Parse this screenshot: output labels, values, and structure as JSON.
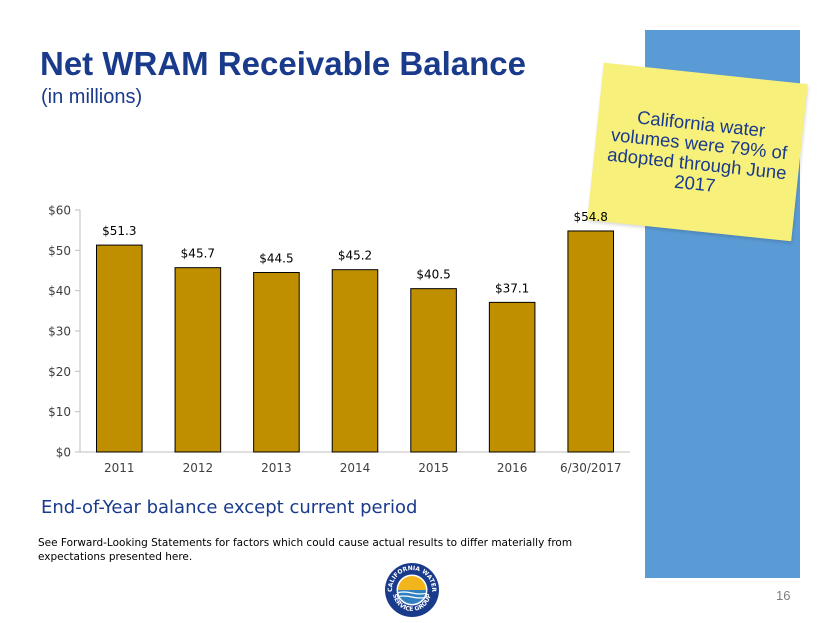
{
  "slide": {
    "title": "Net WRAM Receivable Balance",
    "subtitle": "(in millions)",
    "callout": "California water volumes were 79% of adopted through June 2017",
    "caption": "End-of-Year balance except current period",
    "disclaimer": "See Forward-Looking Statements for factors which could cause actual results to differ materially from expectations presented here.",
    "page_number": "16",
    "logo": {
      "name": "California Water Service Group logo",
      "ring_text_top": "CALIFORNIA WATER",
      "ring_text_bottom": "SERVICE GROUP"
    }
  },
  "colors": {
    "title": "#1a3a8c",
    "bar": "#bf8f00",
    "panel": "#5b9bd5",
    "sticky": "#f7f07a"
  },
  "chart_data": {
    "type": "bar",
    "categories": [
      "2011",
      "2012",
      "2013",
      "2014",
      "2015",
      "2016",
      "6/30/2017"
    ],
    "values": [
      51.3,
      45.7,
      44.5,
      45.2,
      40.5,
      37.1,
      54.8
    ],
    "data_labels": [
      "$51.3",
      "$45.7",
      "$44.5",
      "$45.2",
      "$40.5",
      "$37.1",
      "$54.8"
    ],
    "y_ticks": [
      0,
      10,
      20,
      30,
      40,
      50,
      60
    ],
    "y_tick_labels": [
      "$0",
      "$10",
      "$20",
      "$30",
      "$40",
      "$50",
      "$60"
    ],
    "ylim": [
      0,
      60
    ],
    "xlabel": "",
    "ylabel": "",
    "grid": false,
    "legend": "none"
  }
}
